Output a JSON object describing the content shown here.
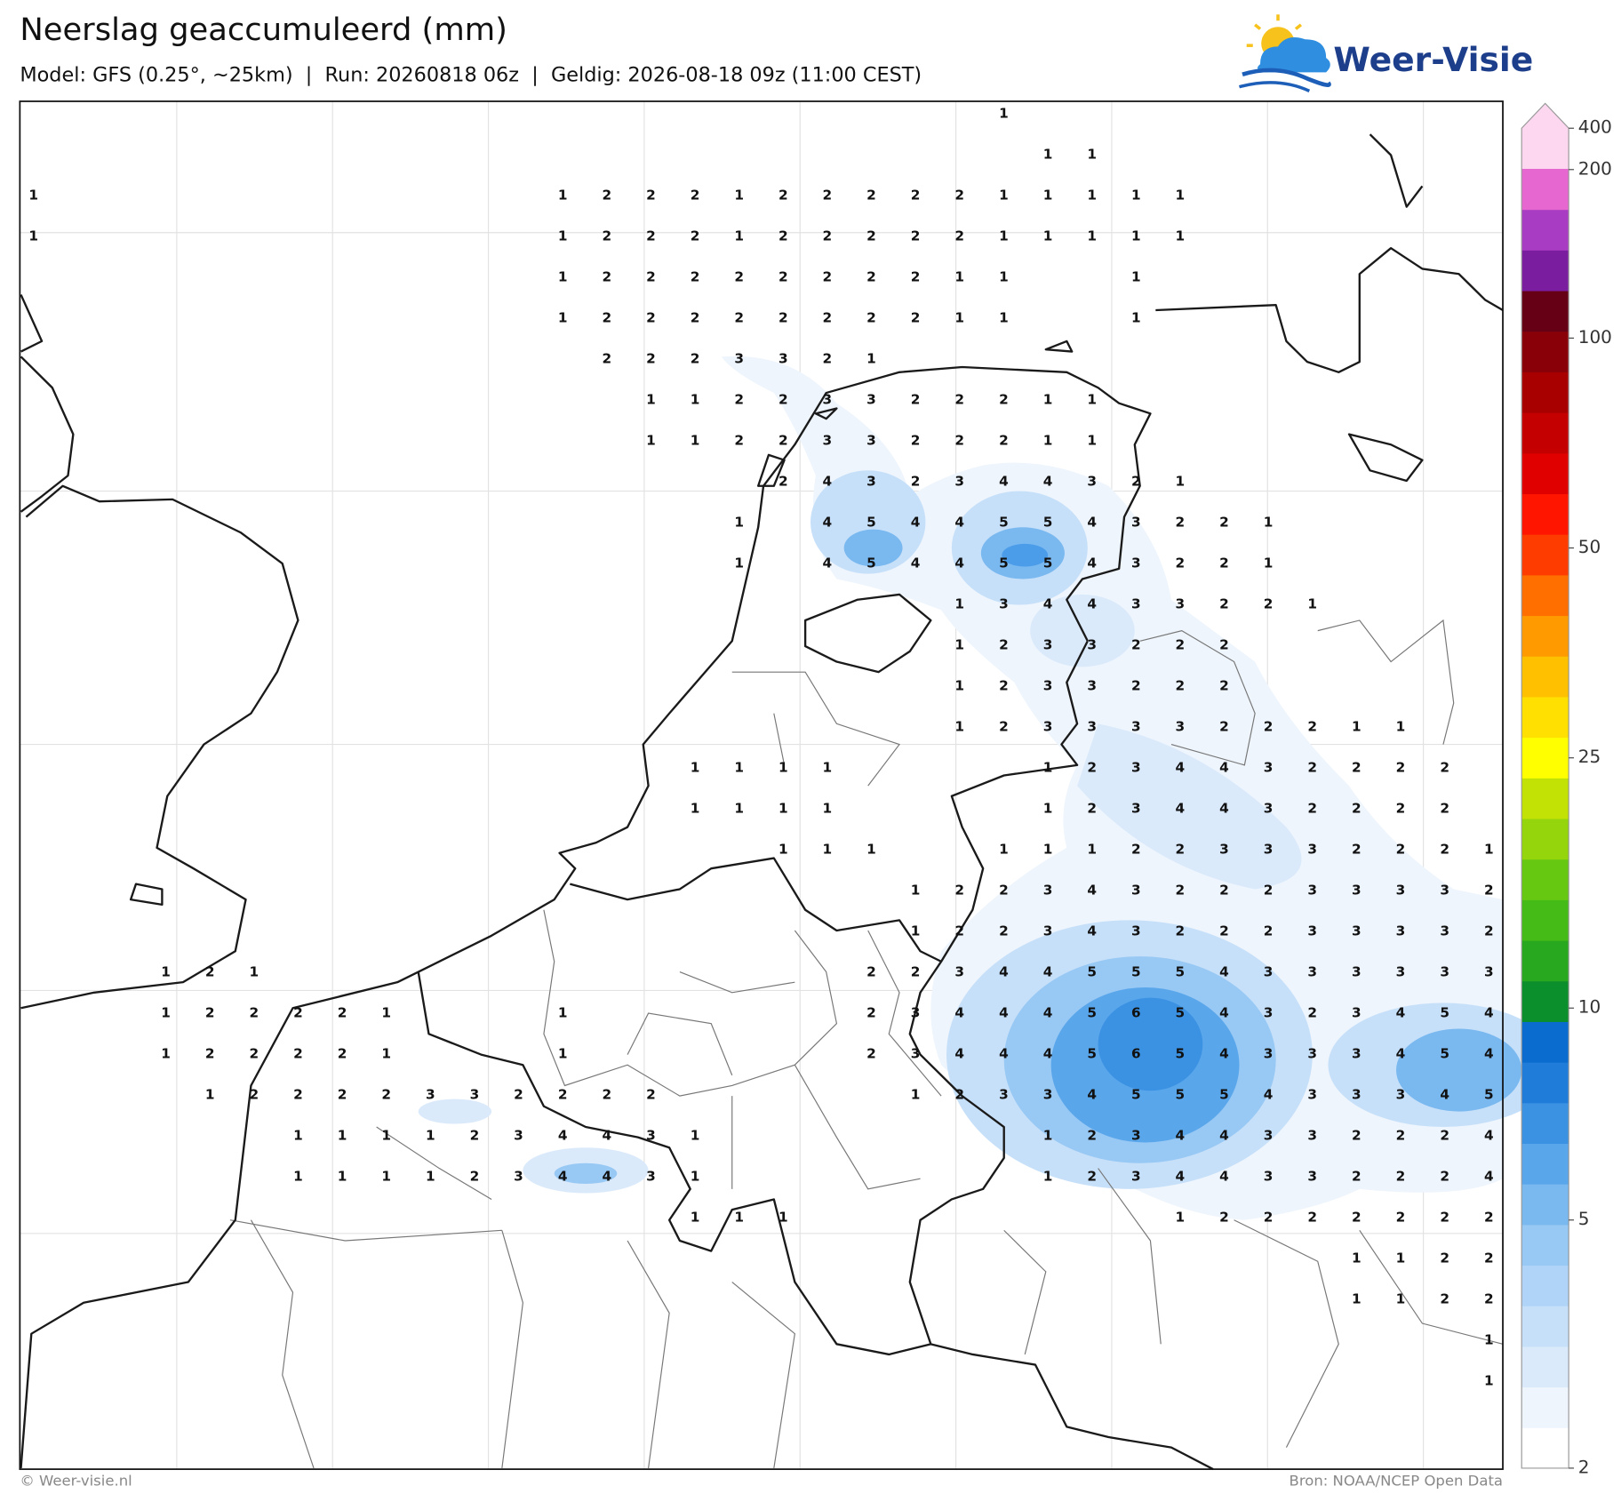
{
  "header": {
    "title": "Neerslag geaccumuleerd (mm)",
    "subtitle": "Model: GFS (0.25°, ~25km)  |  Run: 20260818 06z  |  Geldig: 2026-08-18 09z (11:00 CEST)",
    "logo": "Weer-Visie"
  },
  "map": {
    "grid": [
      [
        null,
        null,
        null,
        null,
        null,
        null,
        null,
        null,
        null,
        null,
        null,
        null,
        null,
        null,
        null,
        null,
        null,
        null,
        null,
        null,
        null,
        null,
        1,
        null,
        null,
        null,
        null,
        null,
        null,
        null,
        null,
        null,
        null,
        null
      ],
      [
        null,
        null,
        null,
        null,
        null,
        null,
        null,
        null,
        null,
        null,
        null,
        null,
        null,
        null,
        null,
        null,
        null,
        null,
        null,
        null,
        null,
        null,
        null,
        1,
        1,
        null,
        null,
        null,
        null,
        null,
        null,
        null,
        null,
        null
      ],
      [
        1,
        null,
        null,
        null,
        null,
        null,
        null,
        null,
        null,
        null,
        null,
        null,
        1,
        2,
        2,
        2,
        1,
        2,
        2,
        2,
        2,
        2,
        1,
        1,
        1,
        1,
        1,
        null,
        null,
        null,
        null,
        null,
        null,
        null
      ],
      [
        1,
        null,
        null,
        null,
        null,
        null,
        null,
        null,
        null,
        null,
        null,
        null,
        1,
        2,
        2,
        2,
        1,
        2,
        2,
        2,
        2,
        2,
        1,
        1,
        1,
        1,
        1,
        null,
        null,
        null,
        null,
        null,
        null,
        null
      ],
      [
        null,
        null,
        null,
        null,
        null,
        null,
        null,
        null,
        null,
        null,
        null,
        null,
        1,
        2,
        2,
        2,
        2,
        2,
        2,
        2,
        2,
        1,
        1,
        null,
        null,
        1,
        null,
        null,
        null,
        null,
        null,
        null,
        null,
        null
      ],
      [
        null,
        null,
        null,
        null,
        null,
        null,
        null,
        null,
        null,
        null,
        null,
        null,
        1,
        2,
        2,
        2,
        2,
        2,
        2,
        2,
        2,
        1,
        1,
        null,
        null,
        1,
        null,
        null,
        null,
        null,
        null,
        null,
        null,
        null
      ],
      [
        null,
        null,
        null,
        null,
        null,
        null,
        null,
        null,
        null,
        null,
        null,
        null,
        null,
        2,
        2,
        2,
        3,
        3,
        2,
        1,
        null,
        null,
        null,
        null,
        null,
        null,
        null,
        null,
        null,
        null,
        null,
        null,
        null,
        null
      ],
      [
        null,
        null,
        null,
        null,
        null,
        null,
        null,
        null,
        null,
        null,
        null,
        null,
        null,
        null,
        1,
        1,
        2,
        2,
        3,
        3,
        2,
        2,
        2,
        1,
        1,
        null,
        null,
        null,
        null,
        null,
        null,
        null,
        null,
        null
      ],
      [
        null,
        null,
        null,
        null,
        null,
        null,
        null,
        null,
        null,
        null,
        null,
        null,
        null,
        null,
        1,
        1,
        2,
        2,
        3,
        3,
        2,
        2,
        2,
        1,
        1,
        null,
        null,
        null,
        null,
        null,
        null,
        null,
        null,
        null
      ],
      [
        null,
        null,
        null,
        null,
        null,
        null,
        null,
        null,
        null,
        null,
        null,
        null,
        null,
        null,
        null,
        null,
        null,
        2,
        4,
        3,
        2,
        3,
        4,
        4,
        3,
        2,
        1,
        null,
        null,
        null,
        null,
        null,
        null,
        null
      ],
      [
        null,
        null,
        null,
        null,
        null,
        null,
        null,
        null,
        null,
        null,
        null,
        null,
        null,
        null,
        null,
        null,
        1,
        null,
        4,
        5,
        4,
        4,
        5,
        5,
        4,
        3,
        2,
        2,
        1,
        null,
        null,
        null,
        null,
        null
      ],
      [
        null,
        null,
        null,
        null,
        null,
        null,
        null,
        null,
        null,
        null,
        null,
        null,
        null,
        null,
        null,
        null,
        1,
        null,
        4,
        5,
        4,
        4,
        5,
        5,
        4,
        3,
        2,
        2,
        1,
        null,
        null,
        null,
        null,
        null
      ],
      [
        null,
        null,
        null,
        null,
        null,
        null,
        null,
        null,
        null,
        null,
        null,
        null,
        null,
        null,
        null,
        null,
        null,
        null,
        null,
        null,
        null,
        1,
        3,
        4,
        4,
        3,
        3,
        2,
        2,
        1,
        null,
        null,
        null,
        null
      ],
      [
        null,
        null,
        null,
        null,
        null,
        null,
        null,
        null,
        null,
        null,
        null,
        null,
        null,
        null,
        null,
        null,
        null,
        null,
        null,
        null,
        null,
        1,
        2,
        3,
        3,
        2,
        2,
        2,
        null,
        null,
        null,
        null,
        null,
        null
      ],
      [
        null,
        null,
        null,
        null,
        null,
        null,
        null,
        null,
        null,
        null,
        null,
        null,
        null,
        null,
        null,
        null,
        null,
        null,
        null,
        null,
        null,
        1,
        2,
        3,
        3,
        2,
        2,
        2,
        null,
        null,
        null,
        null,
        null,
        null
      ],
      [
        null,
        null,
        null,
        null,
        null,
        null,
        null,
        null,
        null,
        null,
        null,
        null,
        null,
        null,
        null,
        null,
        null,
        null,
        null,
        null,
        null,
        1,
        2,
        3,
        3,
        3,
        3,
        2,
        2,
        2,
        1,
        1,
        null,
        null
      ],
      [
        null,
        null,
        null,
        null,
        null,
        null,
        null,
        null,
        null,
        null,
        null,
        null,
        null,
        null,
        null,
        1,
        1,
        1,
        1,
        null,
        null,
        null,
        null,
        1,
        2,
        3,
        4,
        4,
        3,
        2,
        2,
        2,
        2,
        null
      ],
      [
        null,
        null,
        null,
        null,
        null,
        null,
        null,
        null,
        null,
        null,
        null,
        null,
        null,
        null,
        null,
        1,
        1,
        1,
        1,
        null,
        null,
        null,
        null,
        1,
        2,
        3,
        4,
        4,
        3,
        2,
        2,
        2,
        2,
        null
      ],
      [
        null,
        null,
        null,
        null,
        null,
        null,
        null,
        null,
        null,
        null,
        null,
        null,
        null,
        null,
        null,
        null,
        null,
        1,
        1,
        1,
        null,
        null,
        1,
        1,
        1,
        2,
        2,
        3,
        3,
        3,
        2,
        2,
        2,
        1
      ],
      [
        null,
        null,
        null,
        null,
        null,
        null,
        null,
        null,
        null,
        null,
        null,
        null,
        null,
        null,
        null,
        null,
        null,
        null,
        null,
        null,
        1,
        2,
        2,
        3,
        4,
        3,
        2,
        2,
        2,
        3,
        3,
        3,
        3,
        2
      ],
      [
        null,
        null,
        null,
        null,
        null,
        null,
        null,
        null,
        null,
        null,
        null,
        null,
        null,
        null,
        null,
        null,
        null,
        null,
        null,
        null,
        1,
        2,
        2,
        3,
        4,
        3,
        2,
        2,
        2,
        3,
        3,
        3,
        3,
        2
      ],
      [
        null,
        null,
        null,
        1,
        2,
        1,
        null,
        null,
        null,
        null,
        null,
        null,
        null,
        null,
        null,
        null,
        null,
        null,
        null,
        2,
        2,
        3,
        4,
        4,
        5,
        5,
        5,
        4,
        3,
        3,
        3,
        3,
        3,
        3
      ],
      [
        null,
        null,
        null,
        1,
        2,
        2,
        2,
        2,
        1,
        null,
        null,
        null,
        1,
        null,
        null,
        null,
        null,
        null,
        null,
        2,
        3,
        4,
        4,
        4,
        5,
        6,
        5,
        4,
        3,
        2,
        3,
        4,
        5,
        4
      ],
      [
        null,
        null,
        null,
        1,
        2,
        2,
        2,
        2,
        1,
        null,
        null,
        null,
        1,
        null,
        null,
        null,
        null,
        null,
        null,
        2,
        3,
        4,
        4,
        4,
        5,
        6,
        5,
        4,
        3,
        3,
        3,
        4,
        5,
        4
      ],
      [
        null,
        null,
        null,
        null,
        1,
        2,
        2,
        2,
        2,
        3,
        3,
        2,
        2,
        2,
        2,
        null,
        null,
        null,
        null,
        null,
        1,
        2,
        3,
        3,
        4,
        5,
        5,
        5,
        4,
        3,
        3,
        3,
        4,
        5
      ],
      [
        null,
        null,
        null,
        null,
        null,
        null,
        1,
        1,
        1,
        1,
        2,
        3,
        4,
        4,
        3,
        1,
        null,
        null,
        null,
        null,
        null,
        null,
        null,
        1,
        2,
        3,
        4,
        4,
        3,
        3,
        2,
        2,
        2,
        4
      ],
      [
        null,
        null,
        null,
        null,
        null,
        null,
        1,
        1,
        1,
        1,
        2,
        3,
        4,
        4,
        3,
        1,
        null,
        null,
        null,
        null,
        null,
        null,
        null,
        1,
        2,
        3,
        4,
        4,
        3,
        3,
        2,
        2,
        2,
        4
      ],
      [
        null,
        null,
        null,
        null,
        null,
        null,
        null,
        null,
        null,
        null,
        null,
        null,
        null,
        null,
        null,
        1,
        1,
        1,
        null,
        null,
        null,
        null,
        null,
        null,
        null,
        null,
        1,
        2,
        2,
        2,
        2,
        2,
        2,
        2
      ],
      [
        null,
        null,
        null,
        null,
        null,
        null,
        null,
        null,
        null,
        null,
        null,
        null,
        null,
        null,
        null,
        null,
        null,
        null,
        null,
        null,
        null,
        null,
        null,
        null,
        null,
        null,
        null,
        null,
        null,
        null,
        1,
        1,
        2,
        2
      ],
      [
        null,
        null,
        null,
        null,
        null,
        null,
        null,
        null,
        null,
        null,
        null,
        null,
        null,
        null,
        null,
        null,
        null,
        null,
        null,
        null,
        null,
        null,
        null,
        null,
        null,
        null,
        null,
        null,
        null,
        null,
        1,
        1,
        2,
        2
      ],
      [
        null,
        null,
        null,
        null,
        null,
        null,
        null,
        null,
        null,
        null,
        null,
        null,
        null,
        null,
        null,
        null,
        null,
        null,
        null,
        null,
        null,
        null,
        null,
        null,
        null,
        null,
        null,
        null,
        null,
        null,
        null,
        null,
        null,
        1
      ],
      [
        null,
        null,
        null,
        null,
        null,
        null,
        null,
        null,
        null,
        null,
        null,
        null,
        null,
        null,
        null,
        null,
        null,
        null,
        null,
        null,
        null,
        null,
        null,
        null,
        null,
        null,
        null,
        null,
        null,
        null,
        null,
        null,
        null,
        1
      ]
    ]
  },
  "colorbar": {
    "ticks": [
      400,
      200,
      100,
      50,
      25,
      10,
      5,
      2
    ],
    "colors": [
      "#ffffff",
      "#eef5fd",
      "#dbeafb",
      "#c7e0f9",
      "#b0d4f7",
      "#98c8f4",
      "#7ab8f0",
      "#5aa6eb",
      "#3b92e3",
      "#1f7dd9",
      "#0a6ccf",
      "#0b8e2c",
      "#28a81f",
      "#45bb18",
      "#66c811",
      "#95d50b",
      "#c2e205",
      "#ffff00",
      "#ffe000",
      "#ffc000",
      "#ff9a00",
      "#ff6f00",
      "#ff3c00",
      "#ff1500",
      "#e00000",
      "#c40000",
      "#a80000",
      "#8a0008",
      "#650015",
      "#7a1d9e",
      "#a83cc2",
      "#e667cf",
      "#fdd6f0"
    ]
  },
  "footer": {
    "credit": "© Weer-visie.nl",
    "source": "Bron: NOAA/NCEP Open Data"
  }
}
